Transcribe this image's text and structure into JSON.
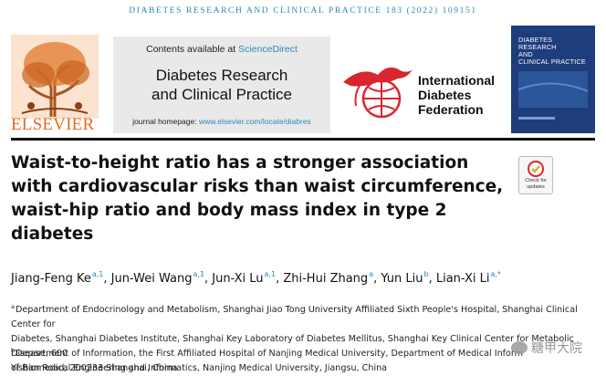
{
  "running_head": "DIABETES RESEARCH AND CLINICAL PRACTICE 183 (2022) 109151",
  "publisher": "ELSEVIER",
  "contents_prefix": "Contents available at ",
  "contents_link": "ScienceDirect",
  "journal_line1": "Diabetes Research",
  "journal_line2": "and Clinical Practice",
  "homepage_prefix": "journal homepage: ",
  "homepage_url": "www.elsevier.com/locate/diabres",
  "idf_line1": "International",
  "idf_line2": "Diabetes",
  "idf_line3": "Federation",
  "cover_title_1": "DIABETES",
  "cover_title_2": "RESEARCH",
  "cover_title_3": "AND",
  "cover_title_4": "CLINICAL PRACTICE",
  "check_updates_1": "Check for",
  "check_updates_2": "updates",
  "title_line1": "Waist-to-height ratio has a stronger association",
  "title_line2": "with cardiovascular risks than waist circumference,",
  "title_line3": "waist-hip ratio and body mass index in type 2",
  "title_line4": "diabetes",
  "authors": [
    {
      "name": "Jiang-Feng Ke",
      "aff": "a,1"
    },
    {
      "name": "Jun-Wei Wang",
      "aff": "a,1"
    },
    {
      "name": "Jun-Xi Lu",
      "aff": "a,1"
    },
    {
      "name": "Zhi-Hui Zhang",
      "aff": "a"
    },
    {
      "name": "Yun Liu",
      "aff": "b"
    },
    {
      "name": "Lian-Xi Li",
      "aff": "a,*"
    }
  ],
  "affil_a_mark": "a",
  "affil_a_1": "Department of Endocrinology and Metabolism, Shanghai Jiao Tong University Affiliated Sixth People's Hospital, Shanghai Clinical Center for",
  "affil_a_2": "Diabetes, Shanghai Diabetes Institute, Shanghai Key Laboratory of Diabetes Mellitus, Shanghai Key Clinical Center for Metabolic Disease, 600",
  "affil_a_3": "Yishan Road, 200233 Shanghai, China",
  "affil_b_mark": "b",
  "affil_b_1": "Department of Information, the First Affiliated Hospital of Nanjing Medical University, Department of Medical Inform",
  "affil_b_2": "of Biomedical Engineering and Informatics, Nanjing Medical University, Jiangsu, China",
  "watermark": "糖甲大院",
  "colors": {
    "accent": "#2a8ab2",
    "elsevier": "#e36c1e",
    "idf_red": "#d9262e",
    "cover": "#1d3d7c"
  }
}
